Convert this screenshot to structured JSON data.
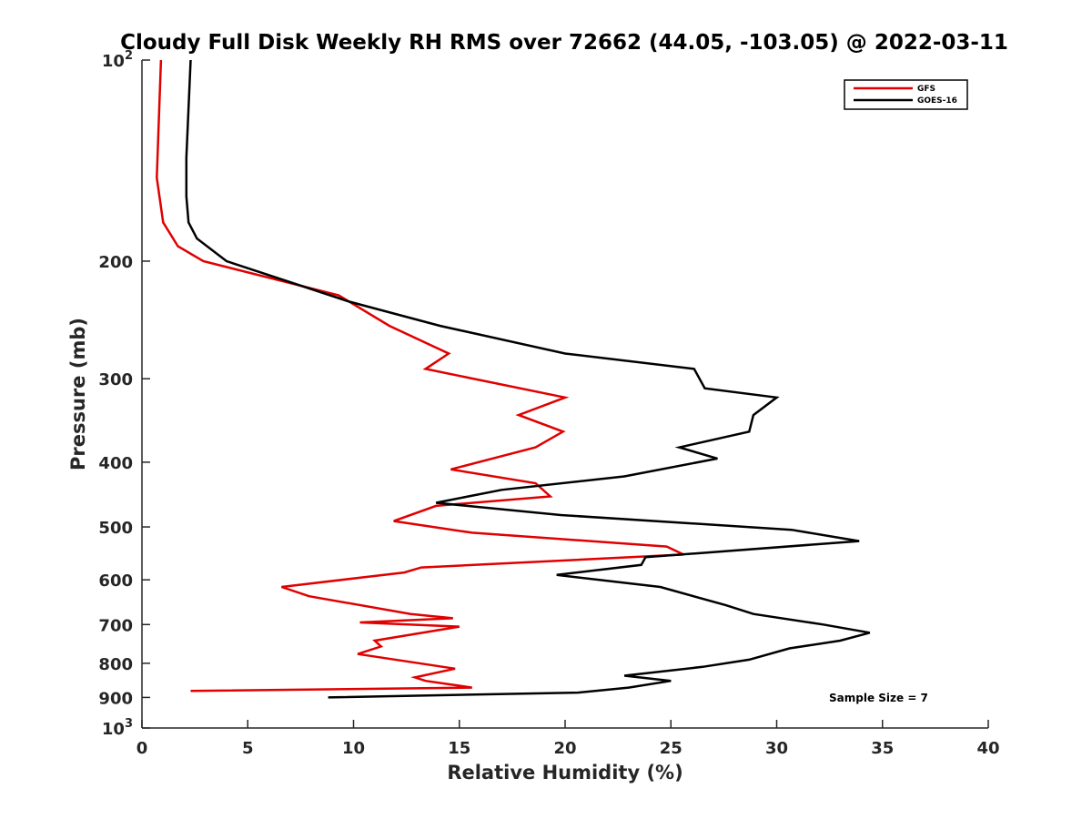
{
  "chart_data": {
    "type": "line",
    "title": "Cloudy Full Disk Weekly RH RMS over 72662 (44.05, -103.05) @ 2022-03-11",
    "xlabel": "Relative Humidity (%)",
    "ylabel": "Pressure (mb)",
    "xlim": [
      0,
      40
    ],
    "ylim": [
      100,
      1000
    ],
    "y_scale": "log",
    "y_reversed": true,
    "x_ticks": [
      0,
      5,
      10,
      15,
      20,
      25,
      30,
      35,
      40
    ],
    "y_ticks": [
      {
        "value": 100,
        "base": "10",
        "exp": "2"
      },
      {
        "value": 200,
        "label": "200"
      },
      {
        "value": 300,
        "label": "300"
      },
      {
        "value": 400,
        "label": "400"
      },
      {
        "value": 500,
        "label": "500"
      },
      {
        "value": 600,
        "label": "600"
      },
      {
        "value": 700,
        "label": "700"
      },
      {
        "value": 800,
        "label": "800"
      },
      {
        "value": 900,
        "label": "900"
      },
      {
        "value": 1000,
        "base": "10",
        "exp": "3"
      }
    ],
    "legend": {
      "position": "top-right"
    },
    "note": "Sample Size = 7",
    "series": [
      {
        "name": "GFS",
        "color": "#e00000",
        "points": [
          [
            0.9,
            100
          ],
          [
            0.7,
            150
          ],
          [
            1.0,
            175
          ],
          [
            1.7,
            190
          ],
          [
            2.9,
            200
          ],
          [
            9.3,
            225
          ],
          [
            11.7,
            250
          ],
          [
            14.5,
            275
          ],
          [
            13.4,
            290
          ],
          [
            20.0,
            320
          ],
          [
            17.8,
            340
          ],
          [
            19.9,
            360
          ],
          [
            18.6,
            380
          ],
          [
            14.6,
            410
          ],
          [
            18.6,
            430
          ],
          [
            19.3,
            450
          ],
          [
            13.9,
            465
          ],
          [
            11.9,
            490
          ],
          [
            15.6,
            510
          ],
          [
            24.8,
            535
          ],
          [
            25.6,
            550
          ],
          [
            13.2,
            575
          ],
          [
            12.4,
            585
          ],
          [
            6.6,
            615
          ],
          [
            7.9,
            635
          ],
          [
            12.7,
            675
          ],
          [
            14.7,
            685
          ],
          [
            10.3,
            695
          ],
          [
            15.0,
            705
          ],
          [
            11.0,
            740
          ],
          [
            11.3,
            755
          ],
          [
            10.2,
            775
          ],
          [
            14.8,
            815
          ],
          [
            12.9,
            840
          ],
          [
            13.4,
            850
          ],
          [
            15.6,
            870
          ],
          [
            2.3,
            880
          ]
        ]
      },
      {
        "name": "GOES-16",
        "color": "#000000",
        "points": [
          [
            2.3,
            100
          ],
          [
            2.1,
            140
          ],
          [
            2.1,
            160
          ],
          [
            2.2,
            175
          ],
          [
            2.6,
            185
          ],
          [
            4.0,
            200
          ],
          [
            9.8,
            230
          ],
          [
            14.1,
            250
          ],
          [
            20.0,
            275
          ],
          [
            26.1,
            290
          ],
          [
            26.6,
            310
          ],
          [
            30.0,
            320
          ],
          [
            28.9,
            340
          ],
          [
            28.7,
            360
          ],
          [
            25.4,
            380
          ],
          [
            27.2,
            395
          ],
          [
            22.8,
            420
          ],
          [
            17.0,
            440
          ],
          [
            13.9,
            460
          ],
          [
            19.8,
            480
          ],
          [
            30.7,
            505
          ],
          [
            33.9,
            525
          ],
          [
            23.8,
            555
          ],
          [
            23.6,
            570
          ],
          [
            19.6,
            590
          ],
          [
            24.5,
            615
          ],
          [
            27.6,
            655
          ],
          [
            28.9,
            675
          ],
          [
            32.2,
            700
          ],
          [
            34.4,
            720
          ],
          [
            33.0,
            740
          ],
          [
            30.6,
            760
          ],
          [
            28.7,
            790
          ],
          [
            26.5,
            810
          ],
          [
            22.8,
            835
          ],
          [
            25.0,
            850
          ],
          [
            23.0,
            870
          ],
          [
            20.6,
            885
          ],
          [
            8.8,
            900
          ]
        ]
      }
    ]
  }
}
